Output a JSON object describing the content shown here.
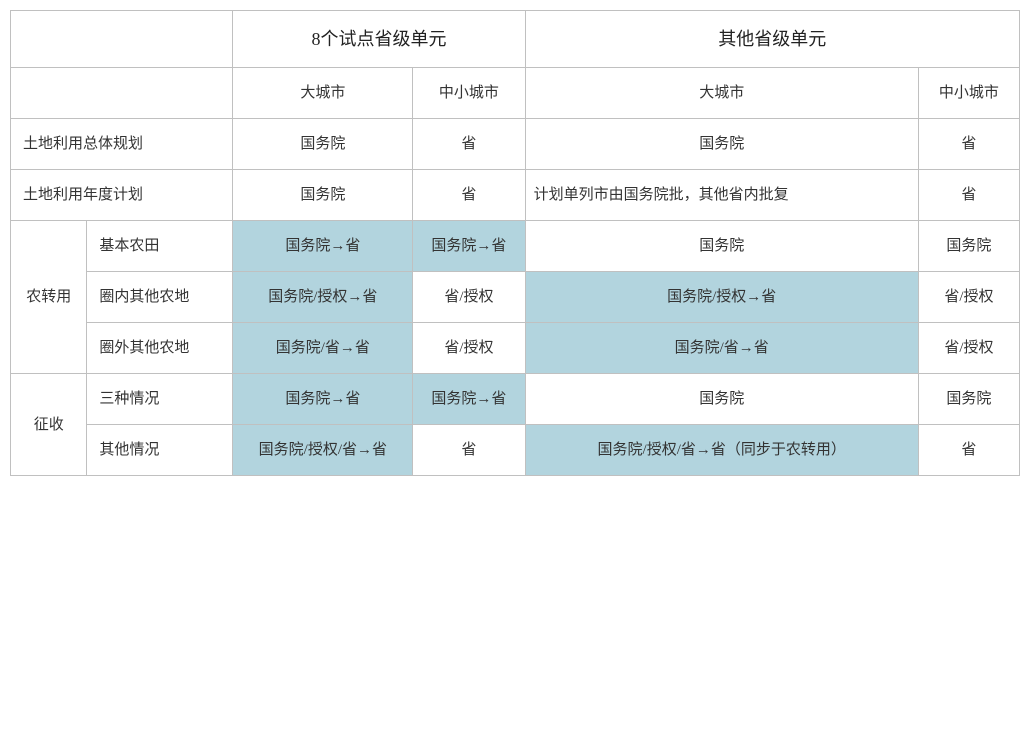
{
  "headers": {
    "pilot_group": "8个试点省级单元",
    "other_group": "其他省级单元",
    "big_city": "大城市",
    "small_city": "中小城市",
    "big_city2": "大城市",
    "small_city2": "中小城市"
  },
  "rows": {
    "overall_plan_label": "土地利用总体规划",
    "overall_plan": {
      "pb": "国务院",
      "ps": "省",
      "ob": "国务院",
      "os": "省"
    },
    "annual_plan_label": "土地利用年度计划",
    "annual_plan": {
      "pb": "国务院",
      "ps": "省",
      "ob": "计划单列市由国务院批，其他省内批复",
      "os": "省"
    },
    "nongzhuan_label": "农转用",
    "nongzhuan_r1_label": "基本农田",
    "nongzhuan_r1": {
      "pb": "国务院→省",
      "ps": "国务院→省",
      "ob": "国务院",
      "os": "国务院"
    },
    "nongzhuan_r2_label": "圈内其他农地",
    "nongzhuan_r2": {
      "pb": "国务院/授权→省",
      "ps": "省/授权",
      "ob": "国务院/授权→省",
      "os": "省/授权"
    },
    "nongzhuan_r3_label": "圈外其他农地",
    "nongzhuan_r3": {
      "pb": "国务院/省→省",
      "ps": "省/授权",
      "ob": "国务院/省→省",
      "os": "省/授权"
    },
    "zhengshou_label": "征收",
    "zhengshou_r1_label": "三种情况",
    "zhengshou_r1": {
      "pb": "国务院→省",
      "ps": "国务院→省",
      "ob": "国务院",
      "os": "国务院"
    },
    "zhengshou_r2_label": "其他情况",
    "zhengshou_r2": {
      "pb": "国务院/授权/省→省",
      "ps": "省",
      "ob": "国务院/授权/省→省（同步于农转用）",
      "os": "省"
    }
  },
  "styling": {
    "highlight_color": "#b2d4de",
    "border_color": "#c0c0c0",
    "background_color": "#ffffff",
    "text_color": "#333333",
    "header_fontsize": 18,
    "cell_fontsize": 15,
    "line_height": 2.0
  }
}
